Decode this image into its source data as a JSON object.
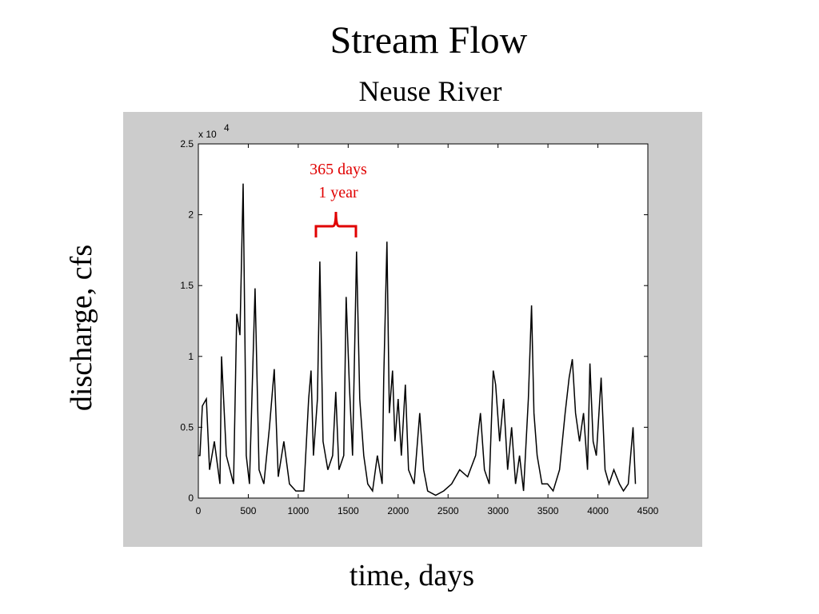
{
  "chart_data": {
    "type": "line",
    "title": "Stream Flow",
    "subtitle": "Neuse River",
    "xlabel": "time, days",
    "ylabel": "discharge, cfs",
    "y_scale_label": {
      "base": "x 10",
      "exponent": "4"
    },
    "annotations": [
      "365 days",
      "1 year"
    ],
    "annotation_color": "#e00000",
    "xlim": [
      0,
      4500
    ],
    "xticks": [
      0,
      500,
      1000,
      1500,
      2000,
      2500,
      3000,
      3500,
      4000,
      4500
    ],
    "ylim": [
      0,
      2.5
    ],
    "yticks": [
      0,
      0.5,
      1,
      1.5,
      2,
      2.5
    ],
    "series": [
      {
        "color": "#000000",
        "x": [
          0,
          16,
          40,
          80,
          112,
          160,
          216,
          232,
          280,
          352,
          384,
          416,
          448,
          480,
          512,
          568,
          608,
          656,
          712,
          760,
          800,
          856,
          912,
          976,
          1056,
          1104,
          1128,
          1152,
          1192,
          1216,
          1248,
          1296,
          1344,
          1376,
          1408,
          1456,
          1480,
          1512,
          1544,
          1584,
          1616,
          1656,
          1696,
          1744,
          1792,
          1840,
          1856,
          1888,
          1912,
          1944,
          1968,
          2000,
          2032,
          2072,
          2104,
          2160,
          2216,
          2256,
          2296,
          2376,
          2456,
          2536,
          2616,
          2696,
          2776,
          2824,
          2864,
          2912,
          2952,
          2976,
          3016,
          3056,
          3096,
          3136,
          3176,
          3216,
          3256,
          3304,
          3336,
          3360,
          3392,
          3440,
          3496,
          3552,
          3616,
          3672,
          3712,
          3744,
          3776,
          3816,
          3856,
          3896,
          3920,
          3952,
          3984,
          4032,
          4072,
          4112,
          4160,
          4216,
          4256,
          4304,
          4352,
          4376
        ],
        "values": [
          0.3,
          0.3,
          0.65,
          0.7,
          0.2,
          0.4,
          0.1,
          1.0,
          0.3,
          0.1,
          1.3,
          1.15,
          2.22,
          0.3,
          0.1,
          1.48,
          0.2,
          0.1,
          0.5,
          0.91,
          0.15,
          0.4,
          0.1,
          0.05,
          0.05,
          0.7,
          0.9,
          0.3,
          0.7,
          1.67,
          0.4,
          0.2,
          0.3,
          0.75,
          0.2,
          0.3,
          1.42,
          0.8,
          0.3,
          1.74,
          0.7,
          0.3,
          0.1,
          0.05,
          0.3,
          0.1,
          0.85,
          1.81,
          0.6,
          0.9,
          0.4,
          0.7,
          0.3,
          0.8,
          0.2,
          0.1,
          0.6,
          0.2,
          0.05,
          0.02,
          0.05,
          0.1,
          0.2,
          0.15,
          0.3,
          0.6,
          0.2,
          0.1,
          0.9,
          0.8,
          0.4,
          0.7,
          0.2,
          0.5,
          0.1,
          0.3,
          0.05,
          0.7,
          1.36,
          0.6,
          0.3,
          0.1,
          0.1,
          0.05,
          0.2,
          0.6,
          0.85,
          0.98,
          0.6,
          0.4,
          0.6,
          0.2,
          0.95,
          0.4,
          0.3,
          0.85,
          0.2,
          0.1,
          0.2,
          0.1,
          0.05,
          0.1,
          0.5,
          0.1
        ]
      }
    ]
  }
}
